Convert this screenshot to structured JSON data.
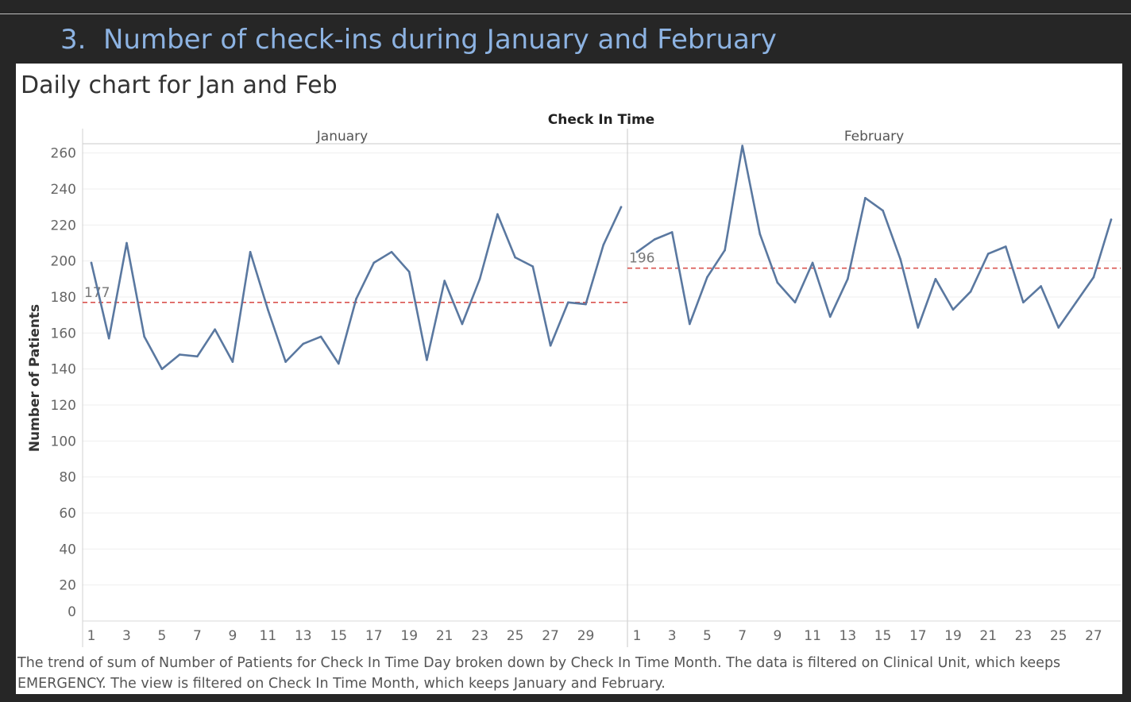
{
  "page": {
    "section_number": "3.",
    "section_title": "Number of check-ins during January and February",
    "chart_title": "Daily chart for Jan and Feb",
    "caption": "The trend of sum of Number of Patients for Check In Time Day broken down by Check In Time Month. The data is filtered on Clinical Unit, which keeps EMERGENCY. The view is filtered on Check In Time Month, which keeps January and February."
  },
  "colors": {
    "line": "#5a78a0",
    "reference_line": "#d9534f",
    "grid": "#efefef",
    "axis_text": "#666666",
    "heading": "#8db3e2",
    "background": "#262626"
  },
  "chart_data": {
    "type": "line",
    "column_header": "Check In Time",
    "ylabel": "Number of Patients",
    "ylim": [
      0,
      270
    ],
    "yticks": [
      0,
      20,
      40,
      60,
      80,
      100,
      120,
      140,
      160,
      180,
      200,
      220,
      240,
      260
    ],
    "grid": true,
    "panels": [
      {
        "name": "January",
        "x_range": [
          1,
          31
        ],
        "x_ticks": [
          1,
          3,
          5,
          7,
          9,
          11,
          13,
          15,
          17,
          19,
          21,
          23,
          25,
          27,
          29
        ],
        "reference_value": 177,
        "reference_label": "177",
        "x": [
          1,
          2,
          3,
          4,
          5,
          6,
          7,
          8,
          9,
          10,
          11,
          12,
          13,
          14,
          15,
          16,
          17,
          18,
          19,
          20,
          21,
          22,
          23,
          24,
          25,
          26,
          27,
          28,
          29,
          30,
          31
        ],
        "values": [
          199,
          157,
          210,
          158,
          140,
          148,
          147,
          162,
          144,
          205,
          173,
          144,
          154,
          158,
          143,
          179,
          199,
          205,
          194,
          145,
          189,
          165,
          190,
          226,
          202,
          197,
          153,
          177,
          176,
          209,
          230
        ]
      },
      {
        "name": "February",
        "x_range": [
          1,
          28
        ],
        "x_ticks": [
          1,
          3,
          5,
          7,
          9,
          11,
          13,
          15,
          17,
          19,
          21,
          23,
          25,
          27
        ],
        "reference_value": 196,
        "reference_label": "196",
        "x": [
          1,
          2,
          3,
          4,
          5,
          6,
          7,
          8,
          9,
          10,
          11,
          12,
          13,
          14,
          15,
          16,
          17,
          18,
          19,
          20,
          21,
          22,
          23,
          24,
          25,
          26,
          27,
          28
        ],
        "values": [
          205,
          212,
          216,
          165,
          191,
          206,
          264,
          215,
          188,
          177,
          199,
          169,
          190,
          235,
          228,
          201,
          163,
          190,
          173,
          183,
          204,
          208,
          177,
          186,
          163,
          177,
          191,
          223
        ]
      }
    ]
  }
}
